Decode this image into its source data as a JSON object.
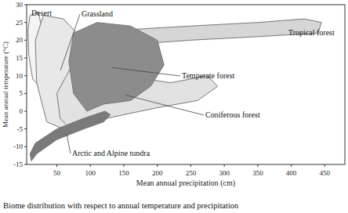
{
  "chart_data": {
    "type": "region",
    "title": "Biome distribution with respect to annual temperature and precipitation",
    "x_label": "Mean annual precipitation (cm)",
    "y_label": "Mean annual temperature (°C)",
    "xlim": [
      5,
      480
    ],
    "xticks": [
      50,
      100,
      150,
      200,
      250,
      300,
      350,
      400,
      450
    ],
    "ylim": [
      -15,
      30
    ],
    "yticks": [
      -15,
      -10,
      -5,
      0,
      5,
      10,
      15,
      20,
      25,
      30
    ],
    "series": [
      {
        "name": "Desert",
        "color": "#f4f4f4",
        "x": [
          10,
          22,
          30,
          32,
          25,
          14,
          8,
          7
        ],
        "values": [
          27,
          28,
          22,
          12,
          7,
          9,
          16,
          23
        ]
      },
      {
        "name": "Grassland",
        "color": "#e8e8e8",
        "x": [
          30,
          60,
          90,
          100,
          85,
          60,
          35,
          20,
          18
        ],
        "values": [
          27,
          26,
          20,
          10,
          0,
          -5,
          -3,
          8,
          20
        ]
      },
      {
        "name": "Tropical forest",
        "color": "#d6d6d6",
        "x": [
          140,
          160,
          250,
          350,
          420,
          445,
          440,
          350,
          250,
          175,
          160,
          145
        ],
        "values": [
          20,
          23,
          24,
          25,
          26,
          25,
          22,
          21,
          20,
          19,
          17,
          17
        ]
      },
      {
        "name": "Coniferous forest",
        "color": "#e2e2e2",
        "x": [
          50,
          70,
          100,
          150,
          220,
          275,
          290,
          260,
          200,
          150,
          100,
          70,
          55
        ],
        "values": [
          5,
          12,
          14,
          10,
          8,
          10,
          7,
          3,
          1,
          -1,
          -3,
          -5,
          -2
        ]
      },
      {
        "name": "Temperate forest",
        "color": "#8c8c8c",
        "x": [
          75,
          110,
          160,
          200,
          210,
          190,
          160,
          120,
          95,
          75,
          68
        ],
        "values": [
          22,
          25,
          24,
          20,
          13,
          7,
          3,
          2,
          0,
          5,
          14
        ]
      },
      {
        "name": "Arctic and Alpine tundra",
        "color": "#7a7a7a",
        "x": [
          12,
          20,
          50,
          90,
          120,
          130,
          122,
          90,
          50,
          18,
          10
        ],
        "values": [
          -14,
          -12,
          -8,
          -5,
          -3,
          -1,
          0,
          -2,
          -5,
          -9,
          -12
        ]
      }
    ]
  }
}
